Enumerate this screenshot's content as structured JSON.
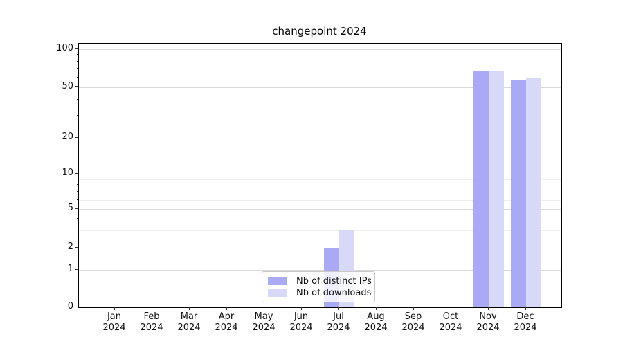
{
  "title": "changepoint 2024",
  "chart_data": {
    "type": "bar",
    "title": "changepoint 2024",
    "xlabel": "",
    "ylabel": "",
    "y_scale": "symlog",
    "ylim": [
      0,
      100
    ],
    "y_major_ticks": [
      0,
      1,
      2,
      5,
      10,
      20,
      50,
      100
    ],
    "y_minor_ticks": [
      3,
      4,
      6,
      7,
      8,
      9,
      30,
      40,
      60,
      70,
      80,
      90
    ],
    "grid": "horizontal-both-major-and-minor",
    "categories": [
      "Jan",
      "Feb",
      "Mar",
      "Apr",
      "May",
      "Jun",
      "Jul",
      "Aug",
      "Sep",
      "Oct",
      "Nov",
      "Dec"
    ],
    "category_year": "2024",
    "legend_position": "lower center",
    "series": [
      {
        "name": "Nb of distinct IPs",
        "color": "#a9a9f6",
        "values": [
          0,
          0,
          0,
          0,
          0,
          0,
          2,
          0,
          0,
          0,
          67,
          57
        ]
      },
      {
        "name": "Nb of downloads",
        "color": "#d8d8f9",
        "values": [
          0,
          0,
          0,
          0,
          0,
          0,
          3,
          0,
          0,
          0,
          67,
          60
        ]
      }
    ]
  }
}
